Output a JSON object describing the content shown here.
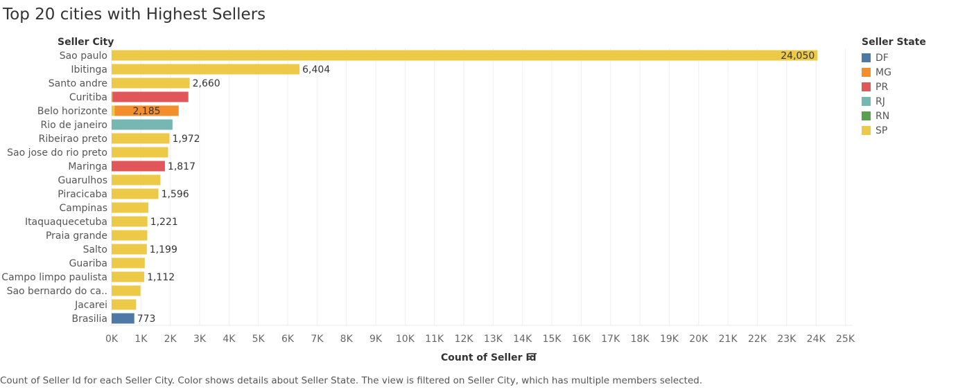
{
  "title": "Top 20 cities with Highest Sellers",
  "footnote": "Count of Seller Id for each Seller City.  Color shows details about Seller State. The view is filtered on Seller City, which has multiple members selected.",
  "sort_icon": "sort-descending-icon",
  "legend": {
    "title": "Seller State",
    "items": [
      {
        "label": "DF",
        "color": "#4e79a7"
      },
      {
        "label": "MG",
        "color": "#f28e2b"
      },
      {
        "label": "PR",
        "color": "#e15759"
      },
      {
        "label": "RJ",
        "color": "#76b7b2"
      },
      {
        "label": "RN",
        "color": "#59a14f"
      },
      {
        "label": "SP",
        "color": "#edc948"
      }
    ]
  },
  "chart_data": {
    "type": "bar",
    "orientation": "horizontal",
    "title": "Top 20 cities with Highest Sellers",
    "row_header": "Seller City",
    "xlabel": "Count of Seller Id",
    "xlim": [
      0,
      25000
    ],
    "xticks": [
      "0K",
      "1K",
      "2K",
      "3K",
      "4K",
      "5K",
      "6K",
      "7K",
      "8K",
      "9K",
      "10K",
      "11K",
      "12K",
      "13K",
      "14K",
      "15K",
      "16K",
      "17K",
      "18K",
      "19K",
      "20K",
      "21K",
      "22K",
      "23K",
      "24K",
      "25K"
    ],
    "grid": true,
    "legend_position": "right",
    "categories": [
      "Sao paulo",
      "Ibitinga",
      "Santo andre",
      "Curitiba",
      "Belo horizonte",
      "Rio de janeiro",
      "Ribeirao preto",
      "Sao jose do rio preto",
      "Maringa",
      "Guarulhos",
      "Piracicaba",
      "Campinas",
      "Itaquaquecetuba",
      "Praia grande",
      "Salto",
      "Guariba",
      "Campo limpo paulista",
      "Sao bernardo do ca..",
      "Jacarei",
      "Brasilia"
    ],
    "bars": [
      {
        "segments": [
          {
            "state": "SP",
            "value": 24050
          }
        ],
        "label": "24,050"
      },
      {
        "segments": [
          {
            "state": "SP",
            "value": 6404
          }
        ],
        "label": "6,404"
      },
      {
        "segments": [
          {
            "state": "SP",
            "value": 2660
          }
        ],
        "label": "2,660"
      },
      {
        "segments": [
          {
            "state": "MG",
            "value": 40
          },
          {
            "state": "PR",
            "value": 2575
          }
        ],
        "label": ""
      },
      {
        "segments": [
          {
            "state": "SP",
            "value": 100
          },
          {
            "state": "MG",
            "value": 2185
          }
        ],
        "label": "2,185"
      },
      {
        "segments": [
          {
            "state": "RJ",
            "value": 2075
          }
        ],
        "label": ""
      },
      {
        "segments": [
          {
            "state": "SP",
            "value": 1972
          }
        ],
        "label": "1,972"
      },
      {
        "segments": [
          {
            "state": "SP",
            "value": 1925
          }
        ],
        "label": ""
      },
      {
        "segments": [
          {
            "state": "PR",
            "value": 1817
          }
        ],
        "label": "1,817"
      },
      {
        "segments": [
          {
            "state": "SP",
            "value": 1665
          }
        ],
        "label": ""
      },
      {
        "segments": [
          {
            "state": "SP",
            "value": 1596
          }
        ],
        "label": "1,596"
      },
      {
        "segments": [
          {
            "state": "SP",
            "value": 1250
          }
        ],
        "label": ""
      },
      {
        "segments": [
          {
            "state": "SP",
            "value": 1221
          }
        ],
        "label": "1,221"
      },
      {
        "segments": [
          {
            "state": "SP",
            "value": 1215
          }
        ],
        "label": ""
      },
      {
        "segments": [
          {
            "state": "SP",
            "value": 1199
          }
        ],
        "label": "1,199"
      },
      {
        "segments": [
          {
            "state": "SP",
            "value": 1130
          }
        ],
        "label": ""
      },
      {
        "segments": [
          {
            "state": "SP",
            "value": 1112
          }
        ],
        "label": "1,112"
      },
      {
        "segments": [
          {
            "state": "SP",
            "value": 985
          }
        ],
        "label": ""
      },
      {
        "segments": [
          {
            "state": "SP",
            "value": 835
          }
        ],
        "label": ""
      },
      {
        "segments": [
          {
            "state": "DF",
            "value": 773
          }
        ],
        "label": "773"
      }
    ]
  }
}
